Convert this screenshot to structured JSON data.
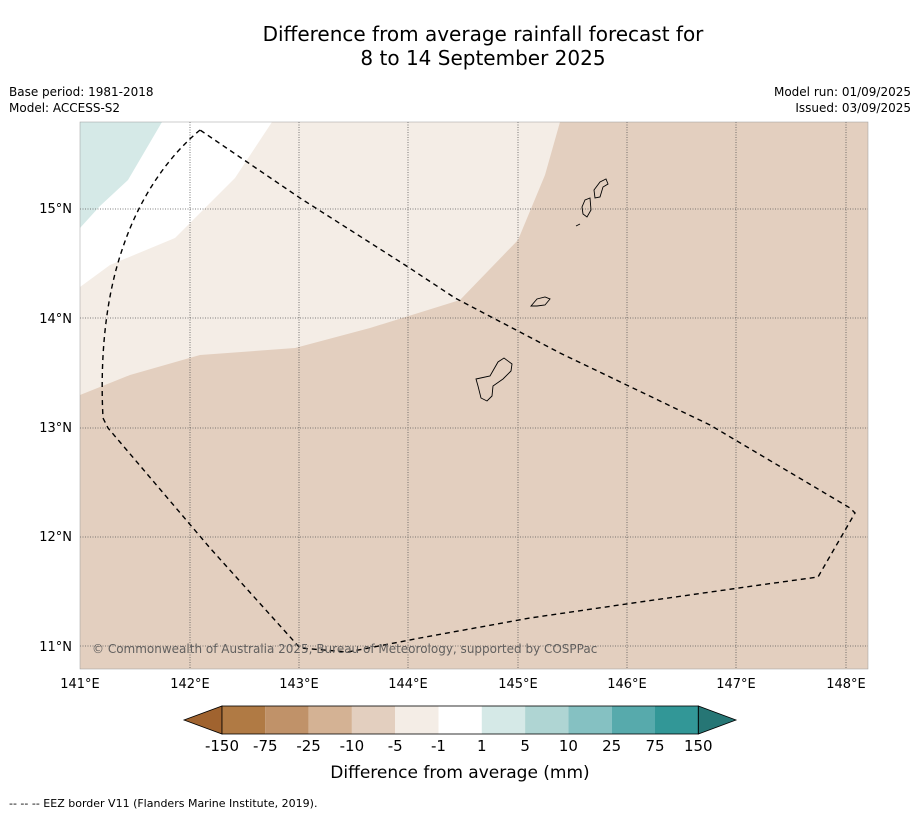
{
  "title_line1": "Difference from average rainfall forecast for",
  "title_line2": "8 to 14 September 2025",
  "base_period": "Base period: 1981-2018",
  "model": "Model: ACCESS-S2",
  "model_run": "Model run: 01/09/2025",
  "issued": "Issued: 03/09/2025",
  "copyright": "© Commonwealth of Australia 2025, Bureau of Meteorology, supported by COSPPac",
  "footnote": "--  --  -- EEZ border V11 (Flanders Marine Institute, 2019).",
  "map": {
    "lon_range": [
      141.0,
      148.2
    ],
    "lat_range": [
      10.8,
      15.8
    ],
    "lon_ticks": [
      "141°E",
      "142°E",
      "143°E",
      "144°E",
      "145°E",
      "146°E",
      "147°E",
      "148°E"
    ],
    "lat_ticks": [
      "15°N",
      "14°N",
      "13°N",
      "12°N",
      "11°N"
    ]
  },
  "colorbar": {
    "title": "Difference from average (mm)",
    "labels": [
      "-150",
      "-75",
      "-25",
      "-10",
      "-5",
      "-1",
      "1",
      "5",
      "10",
      "25",
      "75",
      "150"
    ],
    "colors": [
      "#a0632f",
      "#b07a44",
      "#c09269",
      "#d4b294",
      "#e3cfbf",
      "#f4ede6",
      "#ffffff",
      "#d5e9e7",
      "#afd5d3",
      "#85c1c2",
      "#57aaac",
      "#329797",
      "#267675"
    ]
  }
}
